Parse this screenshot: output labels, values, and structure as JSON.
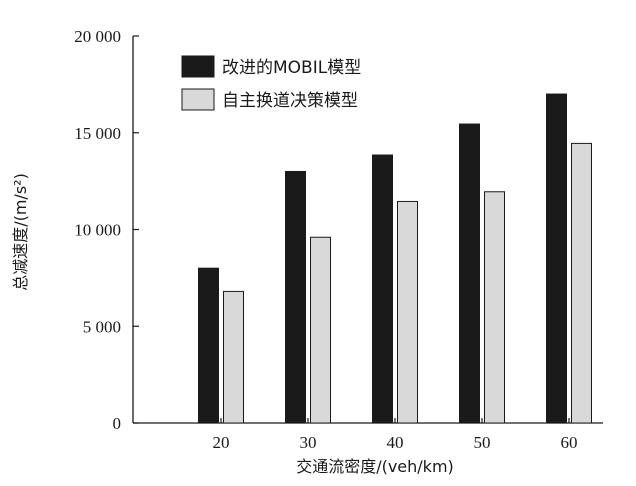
{
  "chart_data": {
    "type": "bar",
    "categories": [
      "20",
      "30",
      "40",
      "50",
      "60"
    ],
    "series": [
      {
        "name": "改进的MOBIL模型",
        "values": [
          8000,
          13000,
          13850,
          15450,
          17000
        ],
        "color": "#1a1a1a"
      },
      {
        "name": "自主换道决策模型",
        "values": [
          6800,
          9600,
          11450,
          11950,
          14450
        ],
        "color": "#d9d9d9"
      }
    ],
    "xlabel": "交通流密度/(veh/km)",
    "ylabel": "总减速度/(m/s²)",
    "ylim": [
      0,
      20000
    ],
    "yticks": [
      0,
      5000,
      10000,
      15000,
      20000
    ],
    "ytick_labels": [
      "0",
      "5 000",
      "10 000",
      "15 000",
      "20 000"
    ],
    "legend_position": "top-left",
    "grid": false
  }
}
